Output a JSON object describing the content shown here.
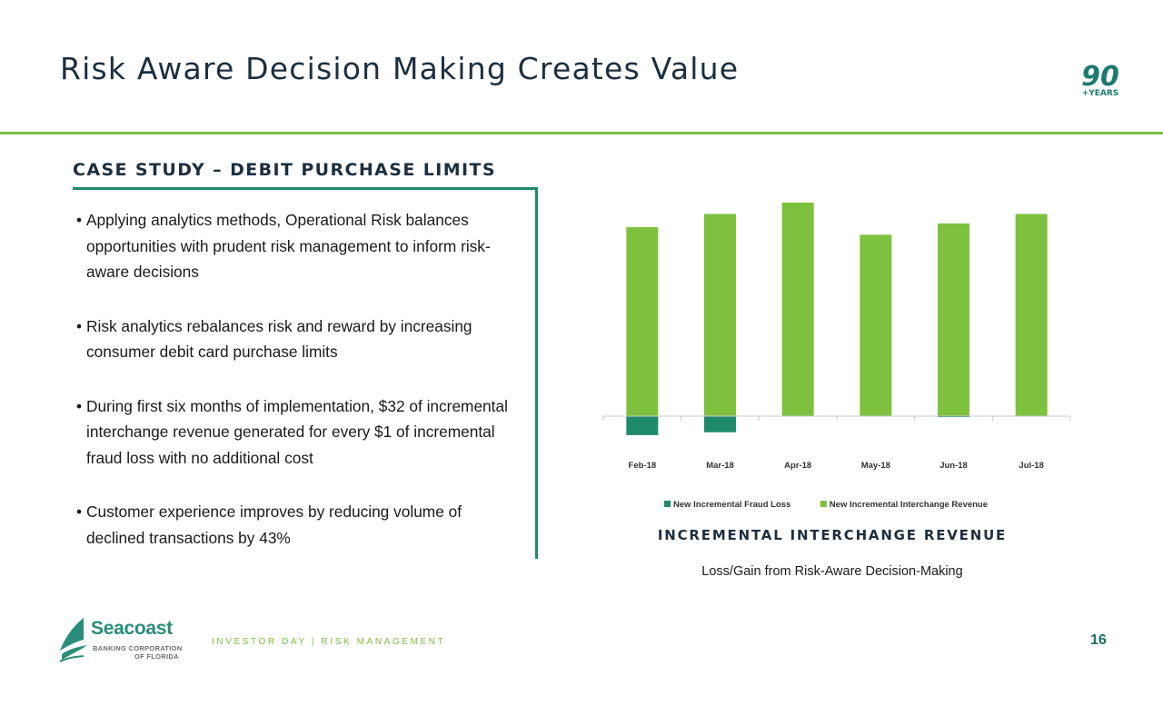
{
  "slide": {
    "title": "Risk Aware Decision Making Creates Value",
    "badge": {
      "number": "90",
      "label": "+YEARS",
      "color": "#1c7a6f"
    },
    "section_heading": "CASE STUDY – DEBIT PURCHASE LIMITS",
    "accent_color": "#7ac143",
    "bracket_color": "#1e8a6a",
    "bullets": [
      "Applying analytics methods, Operational Risk balances opportunities with prudent risk management to inform risk-aware decisions",
      "Risk analytics rebalances risk and reward by increasing consumer debit card purchase limits",
      "During first six months of implementation, $32 of incremental interchange revenue generated for every $1 of incremental fraud loss with no additional cost",
      "Customer experience improves by reducing volume of declined transactions by 43%"
    ],
    "bullet_glyph": "•",
    "chart_caption": "INCREMENTAL INTERCHANGE REVENUE",
    "chart_subcaption": "Loss/Gain from Risk-Aware Decision-Making",
    "footer": {
      "logo_name": "Seacoast",
      "logo_sub_1": "BANKING CORPORATION",
      "logo_sub_2": "OF FLORIDA",
      "text": "INVESTOR DAY | RISK MANAGEMENT",
      "page_number": "16"
    }
  },
  "chart_data": {
    "type": "bar",
    "categories": [
      "Feb-18",
      "Mar-18",
      "Apr-18",
      "May-18",
      "Jun-18",
      "Jul-18"
    ],
    "series": [
      {
        "name": "New Incremental Fraud Loss",
        "color": "#1e8a6a",
        "values": [
          -10,
          -8.5,
          0,
          0,
          -0.5,
          0
        ]
      },
      {
        "name": "New Incremental Interchange Revenue",
        "color": "#7ec13e",
        "values": [
          100,
          107,
          113,
          96,
          102,
          107
        ]
      }
    ],
    "ylim": [
      -12,
      113
    ],
    "grid": false,
    "legend_position": "bottom",
    "axis_labels_shown": false
  }
}
